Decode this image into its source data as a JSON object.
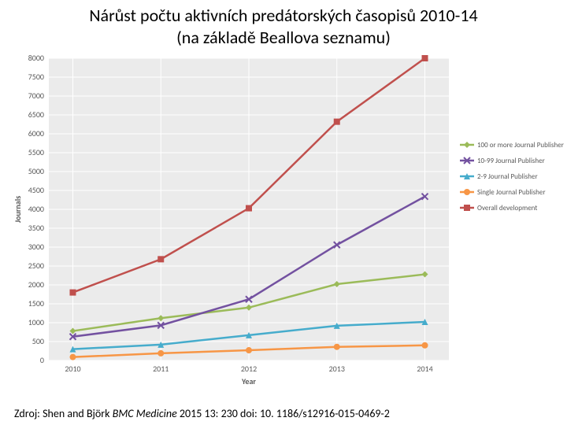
{
  "title_line1": "Nárůst počtu aktivních predátorských časopisů 2010-14",
  "title_line2": "(na základě Beallova seznamu)",
  "source_prefix": "Zdroj: Shen and Björk ",
  "source_journal": "BMC Medicine",
  "source_rest": " 2015 13: 230   doi: 10. 1186/s12916-015-0469-2",
  "chart": {
    "type": "line",
    "background_plot": "#ebebeb",
    "grid_color": "#ffffff",
    "axis_text_color": "#595959",
    "x": {
      "title": "Year",
      "categories": [
        "2010",
        "2011",
        "2012",
        "2013",
        "2014"
      ]
    },
    "y": {
      "title": "Journals",
      "min": 0,
      "max": 8000,
      "step": 500
    },
    "series": [
      {
        "name": "100 or more Journal Publisher",
        "color": "#9bbb59",
        "marker": "diamond",
        "values": [
          780,
          1120,
          1400,
          2020,
          2280
        ]
      },
      {
        "name": "10-99 Journal Publisher",
        "color": "#7351a0",
        "marker": "x",
        "values": [
          630,
          930,
          1620,
          3060,
          4340
        ]
      },
      {
        "name": "2-9 Journal Publisher",
        "color": "#46accc",
        "marker": "triangle",
        "values": [
          300,
          420,
          670,
          920,
          1020
        ]
      },
      {
        "name": "Single Journal Publisher",
        "color": "#f79646",
        "marker": "circle",
        "values": [
          90,
          190,
          270,
          360,
          400
        ]
      },
      {
        "name": "Overall development",
        "color": "#c0504d",
        "marker": "square",
        "values": [
          1800,
          2680,
          4030,
          6320,
          8000
        ]
      }
    ],
    "legend_order": [
      0,
      1,
      2,
      3,
      4
    ],
    "line_width": 2.5,
    "marker_size": 4
  }
}
